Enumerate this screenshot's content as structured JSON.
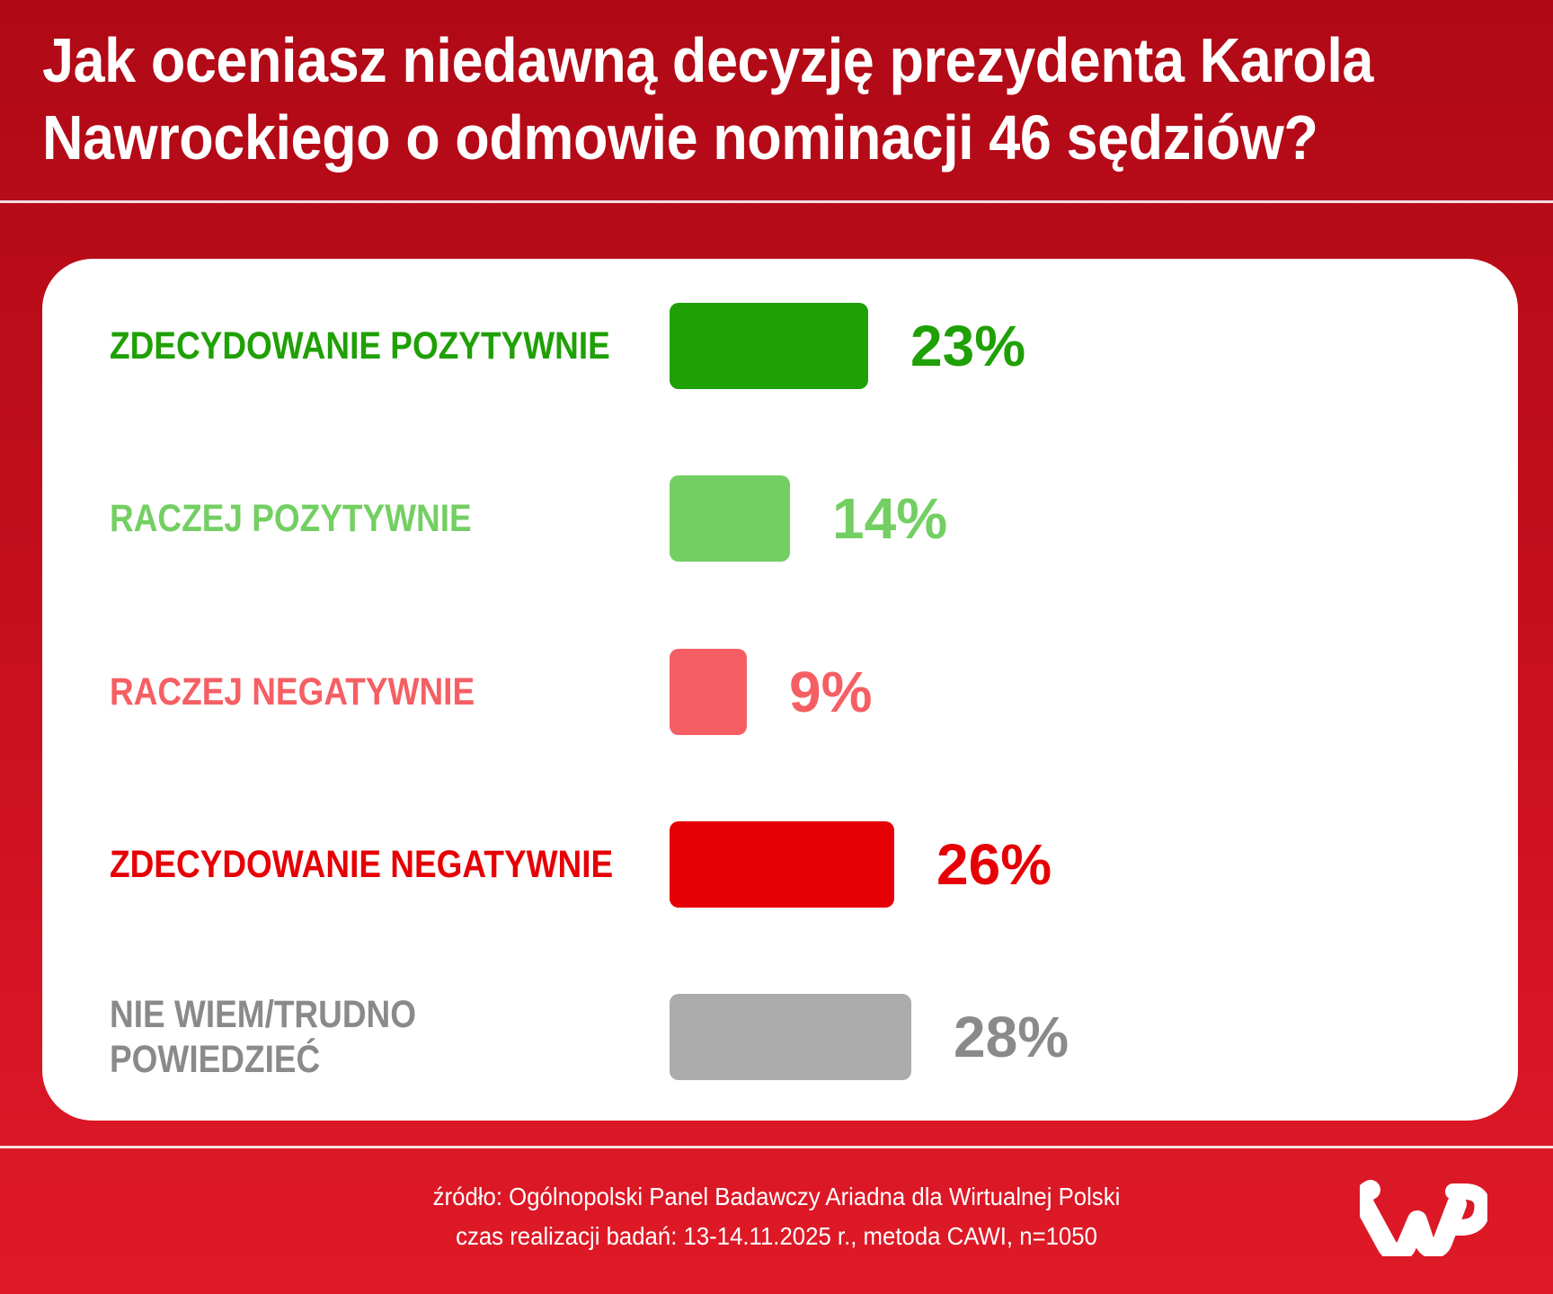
{
  "title": {
    "line1": "Jak oceniasz niedawną decyzję prezydenta Karola",
    "line2": "Nawrockiego o odmowie nominacji 46 sędziów?"
  },
  "rows": [
    {
      "label_lines": [
        "ZDECYDOWANIE POZYTYWNIE"
      ],
      "value": 23,
      "value_label": "23%",
      "color": "#1fa005"
    },
    {
      "label_lines": [
        "RACZEJ POZYTYWNIE"
      ],
      "value": 14,
      "value_label": "14%",
      "color": "#73cf62"
    },
    {
      "label_lines": [
        "RACZEJ NEGATYWNIE"
      ],
      "value": 9,
      "value_label": "9%",
      "color": "#f55f63"
    },
    {
      "label_lines": [
        "ZDECYDOWANIE NEGATYWNIE"
      ],
      "value": 26,
      "value_label": "26%",
      "color": "#e60005"
    },
    {
      "label_lines": [
        "NIE WIEM/TRUDNO",
        "POWIEDZIEĆ"
      ],
      "value": 28,
      "value_label": "28%",
      "color": "#acacac",
      "text_color": "#8a8a8a"
    }
  ],
  "footer": {
    "source": "źródło: Ogólnopolski Panel Badawczy Ariadna dla Wirtualnej Polski",
    "method": "czas realizacji badań: 13-14.11.2025 r., metoda CAWI, n=1050"
  },
  "logo": {
    "name": "WP",
    "color": "#ffffff"
  },
  "colors": {
    "background_top": "#b00916",
    "background_bottom": "#df1a27",
    "card": "#ffffff"
  },
  "chart_data": {
    "type": "bar",
    "orientation": "horizontal",
    "title": "Jak oceniasz niedawną decyzję prezydenta Karola Nawrockiego o odmowie nominacji 46 sędziów?",
    "categories": [
      "ZDECYDOWANIE POZYTYWNIE",
      "RACZEJ POZYTYWNIE",
      "RACZEJ NEGATYWNIE",
      "ZDECYDOWANIE NEGATYWNIE",
      "NIE WIEM/TRUDNO POWIEDZIEĆ"
    ],
    "values": [
      23,
      14,
      9,
      26,
      28
    ],
    "value_labels": [
      "23%",
      "14%",
      "9%",
      "26%",
      "28%"
    ],
    "colors": [
      "#1fa005",
      "#73cf62",
      "#f55f63",
      "#e60005",
      "#acacac"
    ],
    "xlabel": "",
    "ylabel": "",
    "unit": "%",
    "grid": false,
    "legend": "none",
    "annotations": [
      "źródło: Ogólnopolski Panel Badawczy Ariadna dla Wirtualnej Polski",
      "czas realizacji badań: 13-14.11.2025 r., metoda CAWI, n=1050"
    ]
  }
}
